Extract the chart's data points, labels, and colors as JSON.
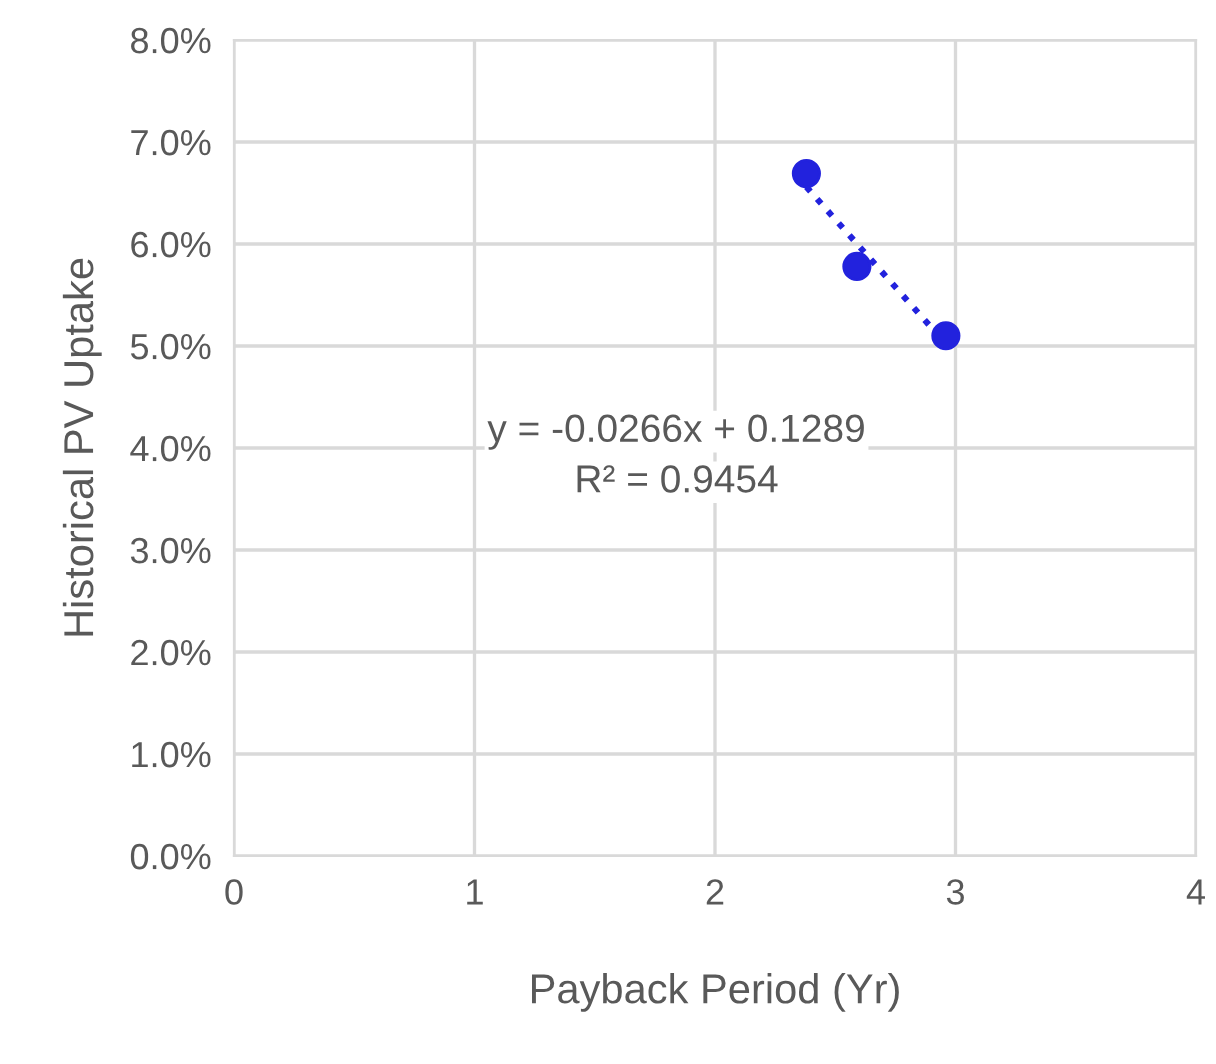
{
  "chart_data": {
    "type": "scatter",
    "xlabel": "Payback Period (Yr)",
    "ylabel": "Historical PV Uptake",
    "series": [
      {
        "color": "#2222dd",
        "x": [
          2.38,
          2.59,
          2.96
        ],
        "values": [
          0.0669,
          0.0578,
          0.051
        ],
        "marker": "circle"
      },
      {
        "type": "line",
        "color": "#2222dd",
        "x": [
          2.38,
          2.96
        ],
        "values": [
          0.0656,
          0.0502
        ],
        "line_style": "dotted",
        "marker": "none"
      }
    ],
    "annotations": [
      "y = -0.0266x + 0.1289",
      "R² = 0.9454"
    ],
    "xlim": [
      0,
      4
    ],
    "xticks": [
      0,
      1,
      2,
      3,
      4
    ],
    "ylim": [
      0,
      0.08
    ],
    "yticks": [
      {
        "value": 0,
        "label": "0.0%"
      },
      {
        "value": 0.01,
        "label": "1.0%"
      },
      {
        "value": 0.02,
        "label": "2.0%"
      },
      {
        "value": 0.03,
        "label": "3.0%"
      },
      {
        "value": 0.04,
        "label": "4.0%"
      },
      {
        "value": 0.05,
        "label": "5.0%"
      },
      {
        "value": 0.06,
        "label": "6.0%"
      },
      {
        "value": 0.07,
        "label": "7.0%"
      },
      {
        "value": 0.08,
        "label": "8.0%"
      }
    ],
    "grid": true,
    "legend": false
  }
}
